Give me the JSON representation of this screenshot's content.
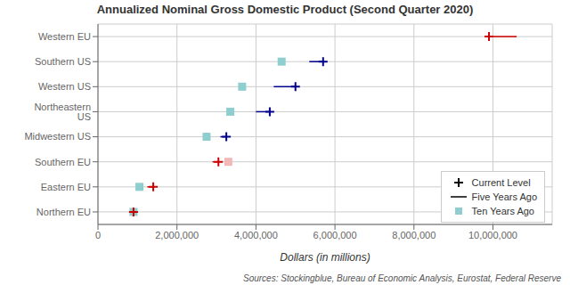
{
  "chart_data": {
    "type": "scatter",
    "title": "Annualized Nominal Gross Domestic Product (Second Quarter 2020)",
    "xlabel": "Dollars (in millions)",
    "annotation": "Sources: Stockingblue, Bureau of Economic Analysis, Eurostat, Federal Reserve",
    "categories": [
      "Western EU",
      "Southern US",
      "Western US",
      "Northeastern US",
      "Midwestern US",
      "Southern EU",
      "Eastern EU",
      "Northern EU"
    ],
    "series": [
      {
        "name": "Current Level",
        "type": "scatter",
        "marker": "plus",
        "color": "#000000",
        "colors": [
          "#cc0000",
          "#00008b",
          "#00008b",
          "#00008b",
          "#00008b",
          "#cc0000",
          "#cc0000",
          "#cc0000"
        ],
        "values": [
          9900000,
          5700000,
          5000000,
          4350000,
          3250000,
          3050000,
          1400000,
          900000
        ]
      },
      {
        "name": "Five Years Ago",
        "type": "line",
        "color": "#000000",
        "colors": [
          "#cc0000",
          "#00008b",
          "#00008b",
          "#00008b",
          "#00008b",
          "#cc0000",
          "#cc0000",
          "#cc0000"
        ],
        "values": [
          10600000,
          5350000,
          4450000,
          4000000,
          3100000,
          2900000,
          1250000,
          null
        ]
      },
      {
        "name": "Ten Years Ago",
        "type": "scatter",
        "marker": "square",
        "color": "#8ecece",
        "colors": [
          "#8ecece",
          "#8ecece",
          "#8ecece",
          "#8ecece",
          "#8ecece",
          "#f2b8b8",
          "#8ecece",
          "#8ecece"
        ],
        "values": [
          null,
          4650000,
          3650000,
          3350000,
          2750000,
          3300000,
          1050000,
          900000
        ]
      }
    ],
    "xlim": [
      0,
      11500000
    ],
    "xticks": [
      0,
      {
        "value": 2000000,
        "label": "2,000,000"
      },
      {
        "value": 4000000,
        "label": "4,000,000"
      },
      {
        "value": 6000000,
        "label": "6,000,000"
      },
      {
        "value": 8000000,
        "label": "8,000,000"
      },
      {
        "value": 10000000,
        "label": "10,000,000"
      }
    ],
    "grid": true,
    "legend": "lower right"
  }
}
